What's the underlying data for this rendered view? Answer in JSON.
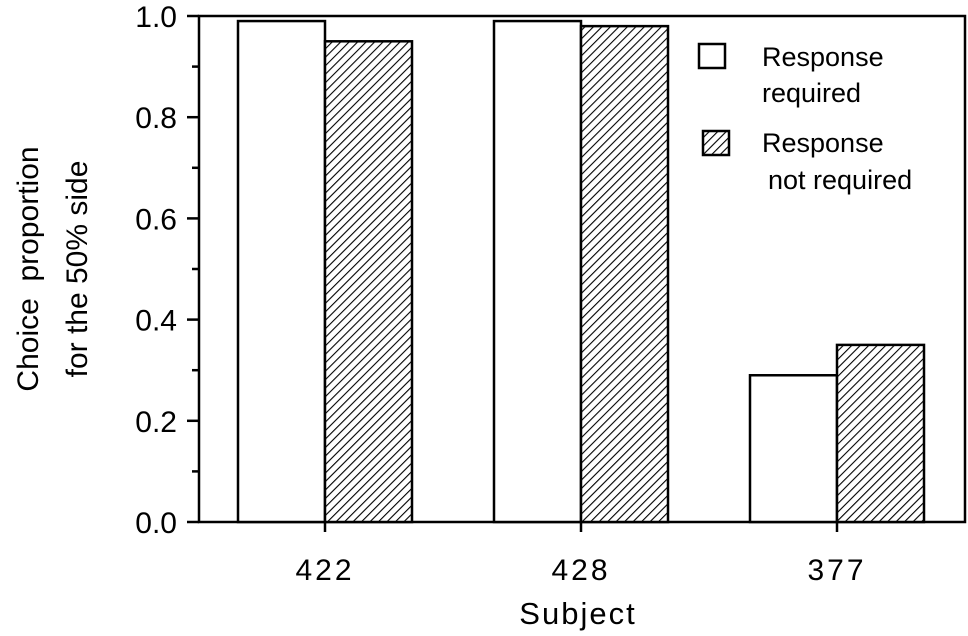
{
  "chart_data": {
    "type": "bar",
    "categories": [
      "422",
      "428",
      "377"
    ],
    "series": [
      {
        "name": "Response required",
        "values": [
          0.99,
          0.99,
          0.29
        ],
        "fill": "white"
      },
      {
        "name": "Response not required",
        "values": [
          0.95,
          0.98,
          0.35
        ],
        "fill": "hatched"
      }
    ],
    "ylim": [
      0,
      1.0
    ],
    "yticks": [
      "0.0",
      "0.2",
      "0.4",
      "0.6",
      "0.8",
      "1.0"
    ],
    "xlabel": "Subject",
    "ylabel_line1": "Choice  proportion",
    "ylabel_line2": "for the 50% side",
    "legend": {
      "placement": "top-right",
      "entries": [
        {
          "line1": "Response",
          "line2": "required"
        },
        {
          "line1": "Response",
          "line2": "not required"
        }
      ]
    },
    "colors": {
      "stroke": "#000000",
      "background": "#ffffff"
    }
  }
}
